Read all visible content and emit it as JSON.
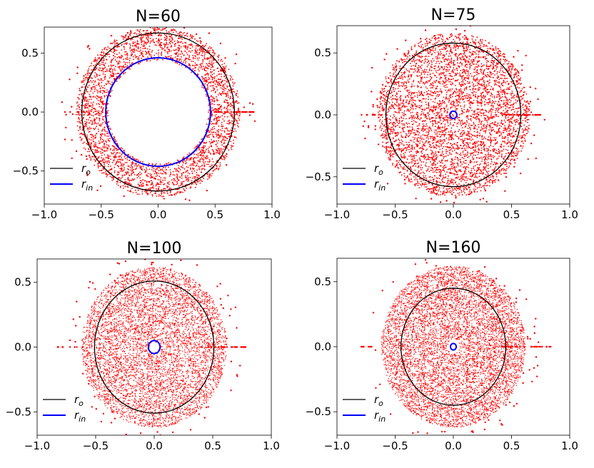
{
  "chart_data": [
    {
      "type": "scatter",
      "title": "N=60",
      "xlim": [
        -1.0,
        1.0
      ],
      "ylim": [
        -0.78,
        0.72
      ],
      "xticks": [
        "-1.0",
        "-0.5",
        "0.0",
        "0.5",
        "1.0"
      ],
      "yticks": [
        "-0.5",
        "0.0",
        "0.5"
      ],
      "r_o": 0.67,
      "r_in": 0.46,
      "point_band": [
        0.44,
        0.72
      ],
      "point_count": 3200,
      "axis_spur": [
        0.45,
        0.85
      ],
      "legend": [
        {
          "name": "r",
          "sub": "o",
          "color": "#000000"
        },
        {
          "name": "r",
          "sub": "in",
          "color": "#0000ff"
        }
      ],
      "legend_loc": "lower-left",
      "point_color": "#ff0000"
    },
    {
      "type": "scatter",
      "title": "N=75",
      "xlim": [
        -1.0,
        1.0
      ],
      "ylim": [
        -0.72,
        0.72
      ],
      "xticks": [
        "-1.0",
        "-0.5",
        "0.0",
        "0.5",
        "1.0"
      ],
      "yticks": [
        "-0.5",
        "0.0",
        "0.5"
      ],
      "r_o": 0.58,
      "r_in": 0.03,
      "point_band": [
        0.0,
        0.66
      ],
      "point_count": 4500,
      "axis_spur": [
        0.45,
        0.75
      ],
      "legend": [
        {
          "name": "r",
          "sub": "o",
          "color": "#000000"
        },
        {
          "name": "r",
          "sub": "in",
          "color": "#0000ff"
        }
      ],
      "legend_loc": "lower-left",
      "point_color": "#ff0000"
    },
    {
      "type": "scatter",
      "title": "N=100",
      "xlim": [
        -1.0,
        1.0
      ],
      "ylim": [
        -0.68,
        0.68
      ],
      "xticks": [
        "-1.0",
        "-0.5",
        "0.0",
        "0.5",
        "1.0"
      ],
      "yticks": [
        "-0.5",
        "0.0",
        "0.5"
      ],
      "r_o": 0.51,
      "r_in": 0.05,
      "point_band": [
        0.04,
        0.62
      ],
      "point_count": 6000,
      "axis_spur": [
        0.4,
        0.78
      ],
      "legend": [
        {
          "name": "r",
          "sub": "o",
          "color": "#000000"
        },
        {
          "name": "r",
          "sub": "in",
          "color": "#0000ff"
        }
      ],
      "legend_loc": "lower-left",
      "point_color": "#ff0000"
    },
    {
      "type": "scatter",
      "title": "N=160",
      "xlim": [
        -1.0,
        1.0
      ],
      "ylim": [
        -0.68,
        0.68
      ],
      "xticks": [
        "-1.0",
        "-0.5",
        "0.0",
        "0.5",
        "1.0"
      ],
      "yticks": [
        "-0.5",
        "0.0",
        "0.5"
      ],
      "r_o": 0.45,
      "r_in": 0.025,
      "point_band": [
        0.05,
        0.62
      ],
      "point_count": 7000,
      "axis_spur": [
        0.4,
        0.84
      ],
      "legend": [
        {
          "name": "r",
          "sub": "o",
          "color": "#000000"
        },
        {
          "name": "r",
          "sub": "in",
          "color": "#0000ff"
        }
      ],
      "legend_loc": "lower-left",
      "point_color": "#ff0000"
    }
  ]
}
